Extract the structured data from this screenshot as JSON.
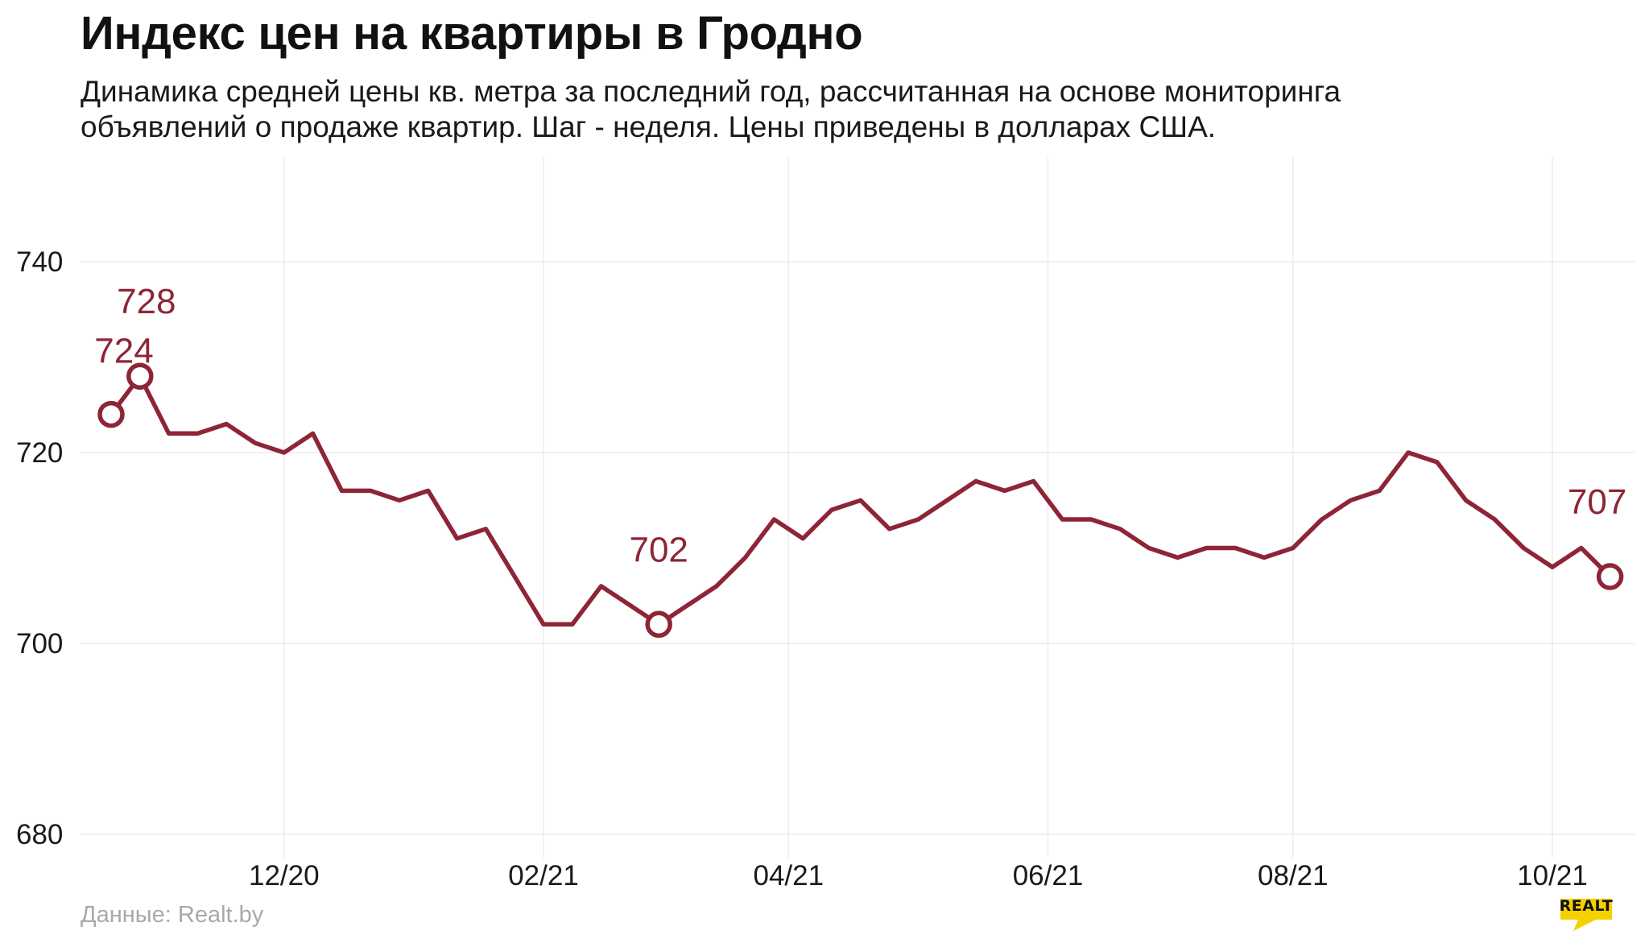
{
  "title": "Индекс цен на квартиры в Гродно",
  "subtitle": "Динамика средней цены кв. метра за последний год, рассчитанная на основе мониторинга объявлений о продаже квартир. Шаг - неделя. Цены приведены в долларах США.",
  "source": "Данные: Realt.by",
  "logo": {
    "text": "REALT",
    "color": "#f5d100"
  },
  "colors": {
    "line": "#8e2536",
    "grid": "#ececec",
    "axis_text": "#1a1a1a"
  },
  "chart_data": {
    "type": "line",
    "title": "Индекс цен на квартиры в Гродно",
    "xlabel": "",
    "ylabel": "",
    "ylim": [
      680,
      750
    ],
    "yticks": [
      680,
      700,
      720,
      740
    ],
    "x_ticks": [
      "12/20",
      "02/21",
      "04/21",
      "06/21",
      "08/21",
      "10/21"
    ],
    "x_tick_positions": [
      6,
      15,
      23.5,
      32.5,
      41,
      50
    ],
    "grid": true,
    "legend": "none",
    "series": [
      {
        "values": [
          724,
          728,
          722,
          722,
          723,
          721,
          720,
          722,
          716,
          716,
          715,
          716,
          711,
          712,
          707,
          702,
          702,
          706,
          704,
          702,
          704,
          706,
          709,
          713,
          711,
          714,
          715,
          712,
          713,
          715,
          717,
          716,
          717,
          713,
          713,
          712,
          710,
          709,
          710,
          710,
          709,
          710,
          713,
          715,
          716,
          720,
          719,
          715,
          713,
          710,
          708,
          710,
          707
        ]
      }
    ],
    "annotations": [
      {
        "index": 0,
        "value": 724,
        "label": "724"
      },
      {
        "index": 1,
        "value": 728,
        "label": "728"
      },
      {
        "index": 19,
        "value": 702,
        "label": "702"
      },
      {
        "index": 52,
        "value": 707,
        "label": "707"
      }
    ]
  }
}
